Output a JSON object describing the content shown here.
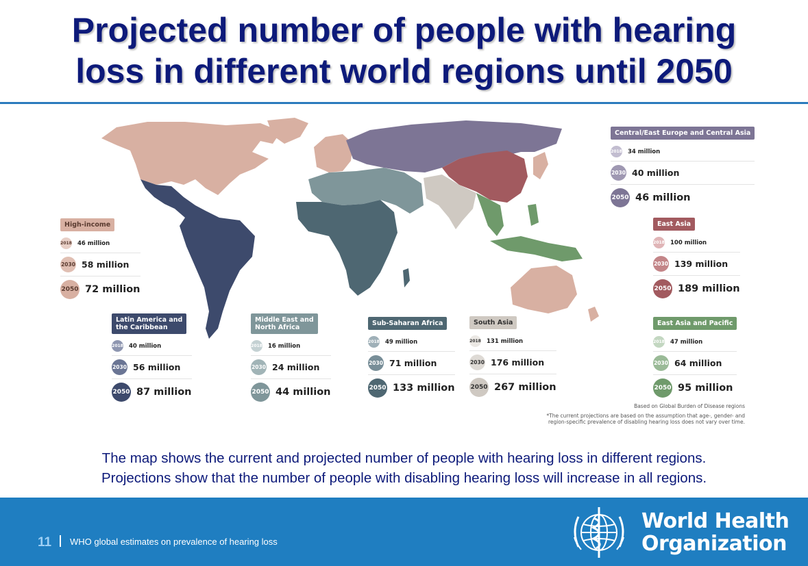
{
  "title_line1": "Projected number of people with hearing",
  "title_line2": "loss in different world regions until 2050",
  "regions": {
    "high_income": {
      "name": "High-income",
      "color": "#d8b0a2",
      "y2018": "46 million",
      "y2030": "58 million",
      "y2050": "72 million"
    },
    "central_east_europe": {
      "name": "Central/East Europe and Central Asia",
      "color": "#7d7595",
      "y2018": "34 million",
      "y2030": "40 million",
      "y2050": "46 million"
    },
    "east_asia": {
      "name": "East Asia",
      "color": "#a25a5f",
      "y2018": "100 million",
      "y2030": "139 million",
      "y2050": "189 million"
    },
    "latin_america": {
      "name_line1": "Latin America and",
      "name_line2": "the Caribbean",
      "color": "#3d4a6c",
      "y2018": "40 million",
      "y2030": "56 million",
      "y2050": "87 million"
    },
    "middle_east": {
      "name_line1": "Middle East and",
      "name_line2": "North Africa",
      "color": "#7f969a",
      "y2018": "16 million",
      "y2030": "24 million",
      "y2050": "44 million"
    },
    "sub_saharan": {
      "name": "Sub-Saharan Africa",
      "color": "#4e6772",
      "y2018": "49 million",
      "y2030": "71 million",
      "y2050": "133 million"
    },
    "south_asia": {
      "name": "South Asia",
      "color": "#cfc9c2",
      "y2018": "131 million",
      "y2030": "176 million",
      "y2050": "267 million"
    },
    "east_asia_pacific": {
      "name": "East Asia and Pacific",
      "color": "#6f9a6b",
      "y2018": "47 million",
      "y2030": "64 million",
      "y2050": "95 million"
    }
  },
  "years": {
    "y2018": "2018",
    "y2030": "2030",
    "y2050": "2050"
  },
  "notes": {
    "gbd": "Based on Global Burden of Disease regions",
    "assumption_line1": "*The current projections are based on the assumption that age-, gender- and",
    "assumption_line2": "region-specific prevalence of disabling hearing loss does not vary over time."
  },
  "caption_line1": "The map shows the current and projected number of people with hearing loss in different regions.",
  "caption_line2": "Projections show that the number of people with disabling hearing loss will increase in all regions.",
  "footer": {
    "page_number": "11",
    "text": "WHO global estimates on prevalence of hearing loss",
    "org_line1": "World Health",
    "org_line2": "Organization"
  }
}
